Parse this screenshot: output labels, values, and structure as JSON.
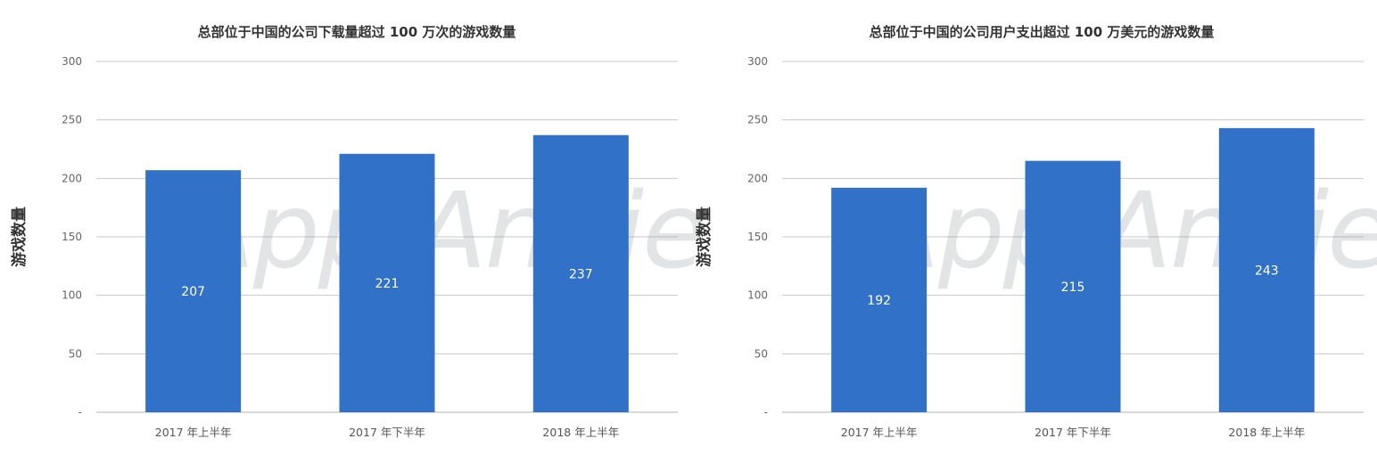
{
  "colors": {
    "bar": "#3171c8",
    "grid": "#c8c8c8",
    "text": "#333333",
    "label": "#ffffff"
  },
  "watermark": "App Annie",
  "chart_data": [
    {
      "type": "bar",
      "title": "总部位于中国的公司下载量超过 100 万次的游戏数量",
      "ylabel": "游戏数量",
      "categories": [
        "2017 年上半年",
        "2017 年下半年",
        "2018 年上半年"
      ],
      "values": [
        207,
        221,
        237
      ],
      "ylim": [
        0,
        300
      ],
      "yticks": [
        0,
        50,
        100,
        150,
        200,
        250,
        300
      ],
      "ytick_labels": [
        "-",
        "50",
        "100",
        "150",
        "200",
        "250",
        "300"
      ],
      "grid": true,
      "legend": "none"
    },
    {
      "type": "bar",
      "title": "总部位于中国的公司用户支出超过 100 万美元的游戏数量",
      "ylabel": "游戏数量",
      "categories": [
        "2017 年上半年",
        "2017 年下半年",
        "2018 年上半年"
      ],
      "values": [
        192,
        215,
        243
      ],
      "ylim": [
        0,
        300
      ],
      "yticks": [
        0,
        50,
        100,
        150,
        200,
        250,
        300
      ],
      "ytick_labels": [
        "-",
        "50",
        "100",
        "150",
        "200",
        "250",
        "300"
      ],
      "grid": true,
      "legend": "none"
    }
  ]
}
